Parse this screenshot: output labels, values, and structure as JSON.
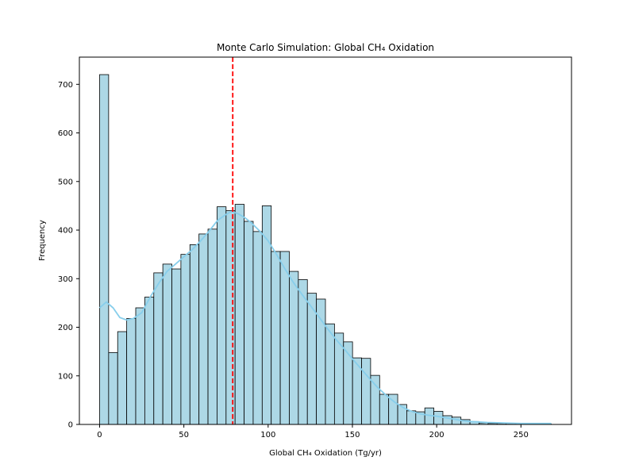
{
  "chart_data": {
    "type": "bar",
    "title": "Monte Carlo Simulation: Global CH₄ Oxidation",
    "xlabel": "Global CH₄ Oxidation (Tg/yr)",
    "ylabel": "Frequency",
    "xlim": [
      -12,
      280
    ],
    "ylim": [
      0,
      756
    ],
    "x_ticks": [
      0,
      50,
      100,
      150,
      200,
      250
    ],
    "y_ticks": [
      0,
      100,
      200,
      300,
      400,
      500,
      600,
      700
    ],
    "bin_width": 5.36,
    "bin_start": 0,
    "values": [
      720,
      148,
      191,
      218,
      240,
      262,
      312,
      330,
      320,
      350,
      370,
      392,
      402,
      448,
      440,
      453,
      418,
      397,
      450,
      356,
      356,
      315,
      298,
      270,
      258,
      207,
      188,
      170,
      137,
      136,
      101,
      62,
      62,
      41,
      28,
      26,
      34,
      27,
      18,
      15,
      10,
      6,
      3,
      2,
      2,
      2,
      1,
      1,
      1,
      1
    ],
    "bar_color": "#add8e6",
    "bar_edge_color": "#000000",
    "kde": {
      "color": "#87ceeb",
      "x": [
        0,
        4,
        8,
        12,
        16,
        20,
        25,
        30,
        35,
        40,
        45,
        50,
        55,
        60,
        65,
        70,
        75,
        78,
        82,
        86,
        90,
        95,
        100,
        105,
        110,
        115,
        120,
        125,
        130,
        135,
        140,
        145,
        150,
        155,
        160,
        165,
        170,
        175,
        180,
        185,
        190,
        195,
        200,
        205,
        210,
        215,
        220,
        230,
        240,
        250,
        260,
        268
      ],
      "y": [
        240,
        252,
        240,
        220,
        215,
        218,
        230,
        262,
        290,
        315,
        330,
        345,
        360,
        378,
        398,
        420,
        432,
        438,
        434,
        426,
        415,
        398,
        378,
        350,
        320,
        292,
        268,
        245,
        222,
        198,
        176,
        156,
        135,
        115,
        95,
        76,
        60,
        46,
        35,
        27,
        22,
        19,
        17,
        14,
        11,
        8,
        6,
        4,
        3,
        2,
        2,
        2
      ]
    },
    "mean_line": {
      "x": 79,
      "color": "#ff0000",
      "style": "dashed"
    },
    "grid": false,
    "legend": "none"
  }
}
